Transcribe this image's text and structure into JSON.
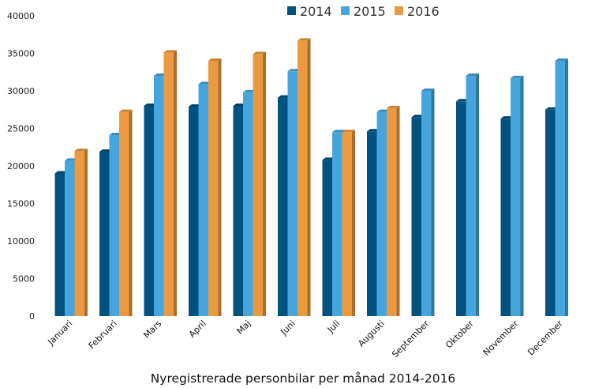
{
  "chart_data": {
    "type": "bar",
    "title": "Nyregistrerade personbilar per månad 2014-2016",
    "xlabel": "",
    "ylabel": "",
    "ylim": [
      0,
      40000
    ],
    "yticks": [
      0,
      5000,
      10000,
      15000,
      20000,
      25000,
      30000,
      35000,
      40000
    ],
    "grid": false,
    "legend_position": "top-center",
    "categories": [
      "Januari",
      "Februari",
      "Mars",
      "April",
      "Maj",
      "Juni",
      "Juli",
      "Augusti",
      "September",
      "Oktober",
      "November",
      "December"
    ],
    "series": [
      {
        "name": "2014",
        "color": "#00527f",
        "values": [
          19000,
          21900,
          28000,
          27900,
          28000,
          29100,
          20800,
          24600,
          26500,
          28600,
          26300,
          27500
        ]
      },
      {
        "name": "2015",
        "color": "#47a5dd",
        "values": [
          20700,
          24100,
          32000,
          30900,
          29800,
          32600,
          24500,
          27200,
          30000,
          32000,
          31700,
          34000
        ]
      },
      {
        "name": "2016",
        "color": "#eb9a41",
        "values": [
          22000,
          27200,
          35100,
          34000,
          34900,
          36700,
          24500,
          27700,
          null,
          null,
          null,
          null
        ]
      }
    ]
  }
}
